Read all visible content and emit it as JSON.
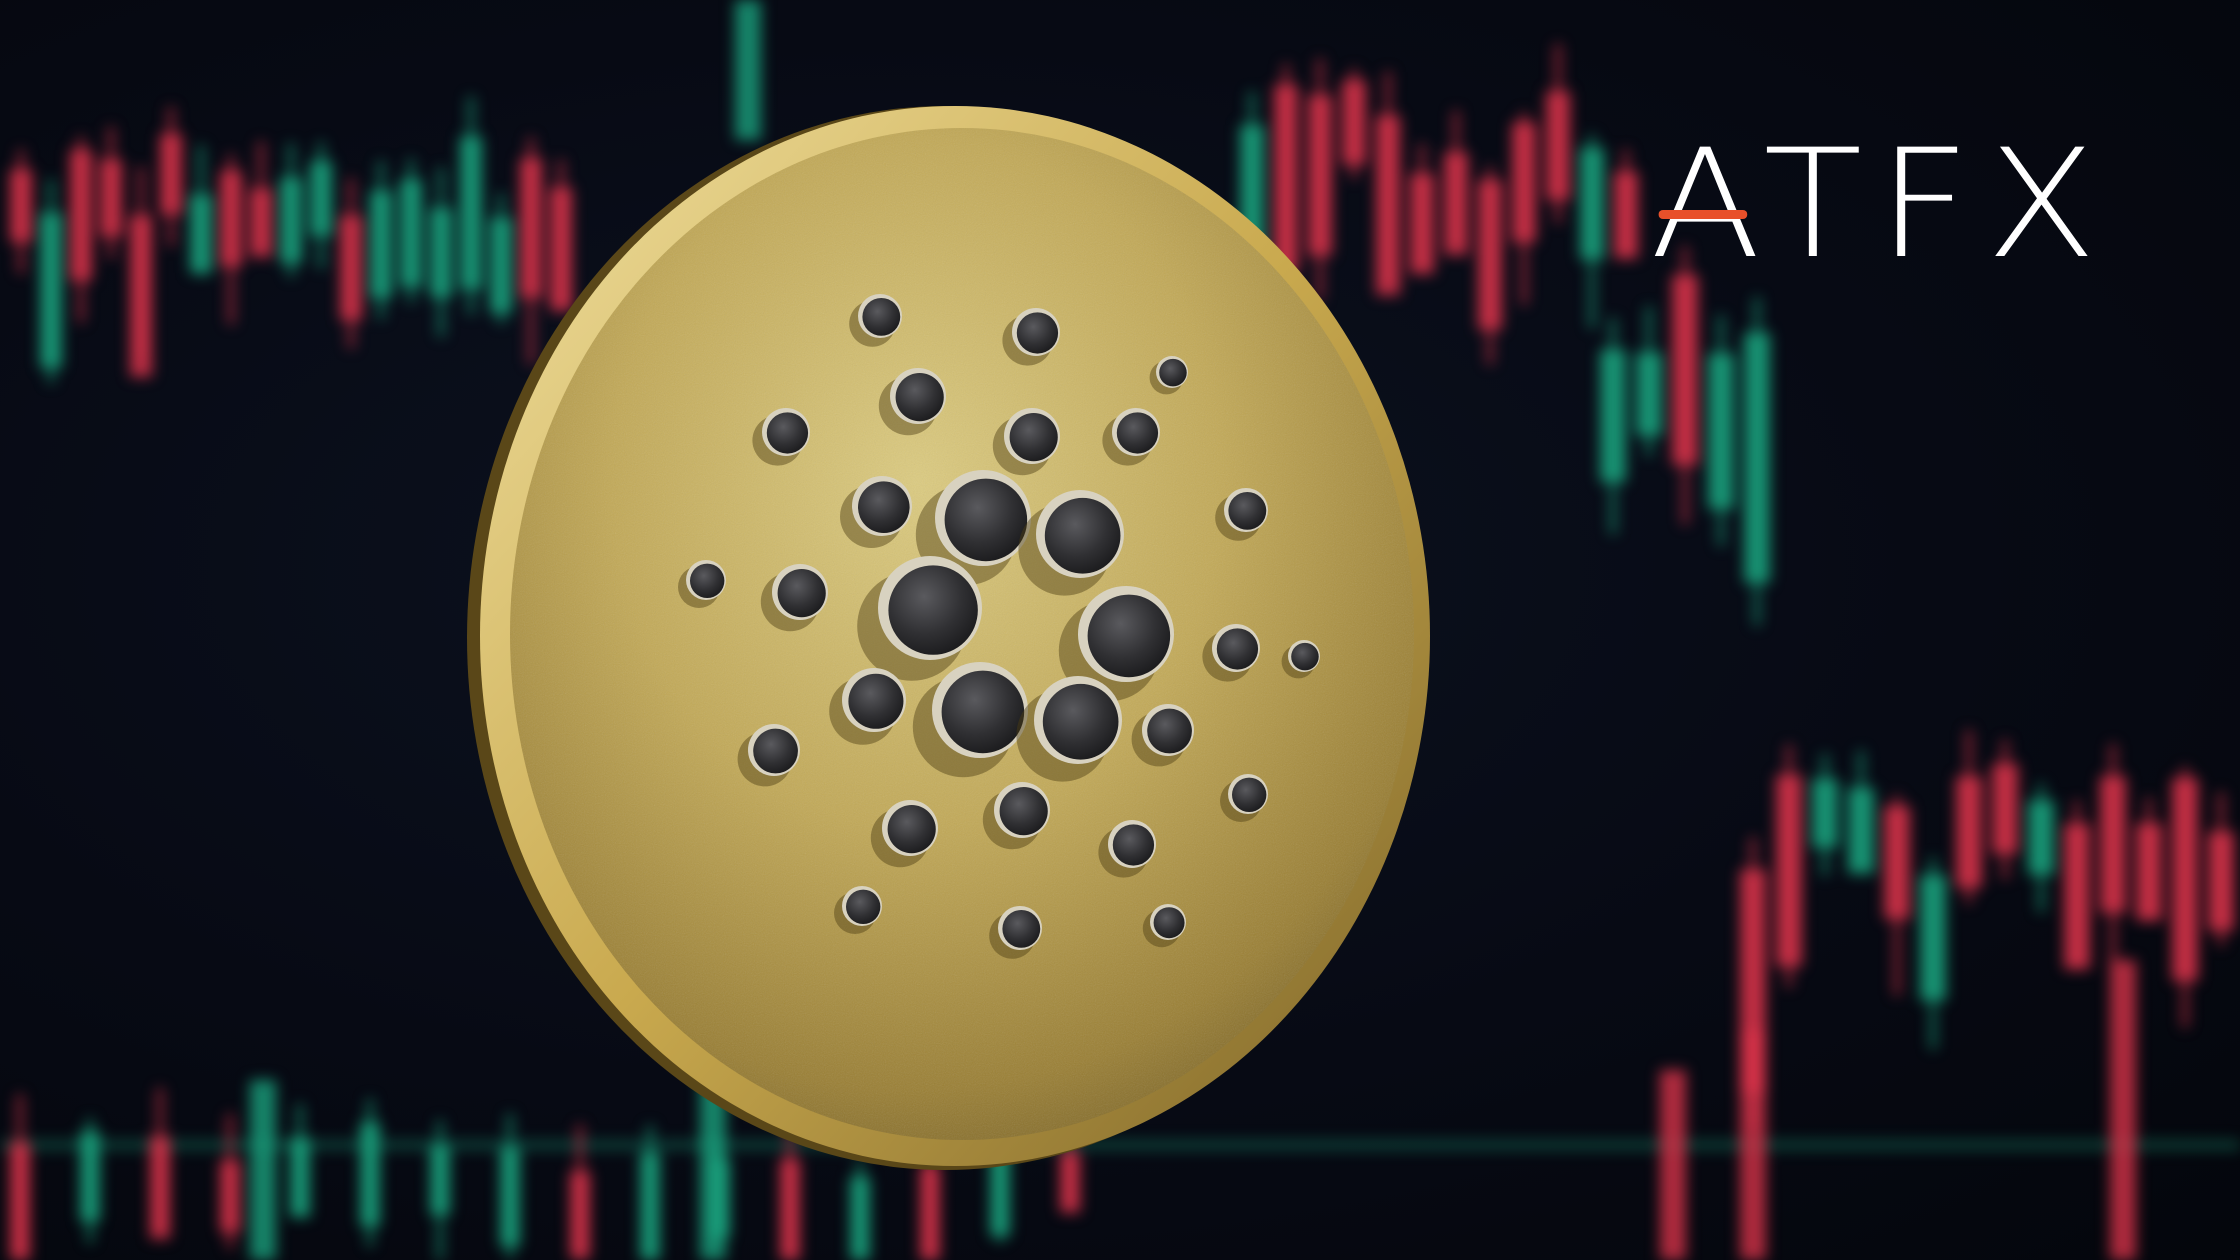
{
  "background": {
    "description_colors": {
      "base": "#060912",
      "up_candle": "#1aa37e",
      "down_candle": "#d9334a"
    }
  },
  "coin": {
    "icon": "cardano-ada-coin-icon",
    "colors": {
      "face_light": "#d9c87a",
      "face_mid": "#b59c4c",
      "face_dark": "#6f5a22",
      "rim": "#e6d48a",
      "dot": "#2e2e30"
    }
  },
  "logo": {
    "text": "ATFX",
    "text_color": "#ffffff",
    "accent_color": "#e8502a"
  }
}
